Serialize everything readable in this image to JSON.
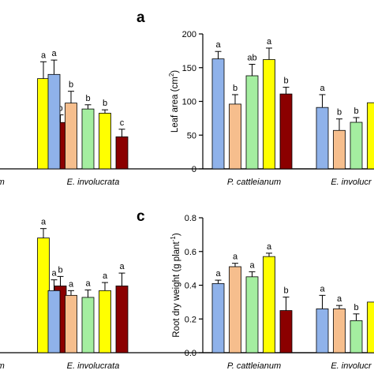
{
  "colors": [
    "#8fb2ea",
    "#f6be8d",
    "#a4eea0",
    "#ffff00",
    "#8b0000"
  ],
  "chart_data": [
    {
      "type": "bar",
      "panel_label": "",
      "ylabel": "",
      "categories": [
        "",
        "E. involucrata"
      ],
      "category_text": [
        "anum",
        "E. involucrata"
      ],
      "tick_labels": [],
      "values": [
        [
          null,
          null,
          null,
          1.07,
          0.55
        ],
        [
          1.12,
          0.78,
          0.71,
          0.66,
          0.38
        ]
      ],
      "errors": [
        [
          null,
          null,
          null,
          0.2,
          0.09
        ],
        [
          0.17,
          0.14,
          0.05,
          0.04,
          0.09
        ]
      ],
      "letters": [
        [
          "",
          "",
          "",
          "a",
          "b"
        ],
        [
          "a",
          "b",
          "b",
          "b",
          "c"
        ]
      ],
      "ylim": [
        0,
        1.6
      ]
    },
    {
      "type": "bar",
      "panel_label": "a",
      "ylabel": "Leaf area",
      "ylabel_unit": "(cm",
      "ylabel_sup": "2",
      "ylabel_close": ")",
      "categories": [
        "P. cattleianum",
        "E. involucrata"
      ],
      "category_text": [
        "P. cattleianum",
        "E. involucr"
      ],
      "tick_labels": [
        "0",
        "50",
        "100",
        "150",
        "200"
      ],
      "values": [
        [
          163,
          96,
          138,
          162,
          111
        ],
        [
          91,
          57,
          69,
          98,
          null
        ]
      ],
      "errors": [
        [
          11,
          14,
          17,
          17,
          10
        ],
        [
          19,
          17,
          7,
          null,
          null
        ]
      ],
      "letters": [
        [
          "a",
          "b",
          "ab",
          "a",
          "b"
        ],
        [
          "a",
          "b",
          "b",
          "",
          ""
        ]
      ],
      "ylim": [
        0,
        200
      ]
    },
    {
      "type": "bar",
      "panel_label": "",
      "ylabel": "",
      "categories": [
        "",
        "E. involucrata"
      ],
      "category_text": [
        "anum",
        "E. involucrata"
      ],
      "tick_labels": [],
      "values": [
        [
          null,
          null,
          null,
          1.7,
          0.99
        ],
        [
          0.92,
          0.85,
          0.82,
          0.92,
          0.99
        ]
      ],
      "errors": [
        [
          null,
          null,
          null,
          0.14,
          0.14
        ],
        [
          0.16,
          0.07,
          0.11,
          0.12,
          0.19
        ]
      ],
      "letters": [
        [
          "",
          "",
          "",
          "a",
          "b"
        ],
        [
          "a",
          "a",
          "a",
          "a",
          "a"
        ]
      ],
      "ylim": [
        0,
        2.0
      ]
    },
    {
      "type": "bar",
      "panel_label": "c",
      "ylabel": "Root dry weight",
      "ylabel_unit": "(g plant",
      "ylabel_sup": "-1",
      "ylabel_close": ")",
      "categories": [
        "P. cattleianum",
        "E. involucrata"
      ],
      "category_text": [
        "P. cattleianum",
        "E. involucr"
      ],
      "tick_labels": [
        "0.0",
        "0.2",
        "0.4",
        "0.6",
        "0.8"
      ],
      "values": [
        [
          0.41,
          0.51,
          0.45,
          0.57,
          0.25
        ],
        [
          0.26,
          0.26,
          0.19,
          0.3,
          null
        ]
      ],
      "errors": [
        [
          0.02,
          0.02,
          0.03,
          0.02,
          0.08
        ],
        [
          0.08,
          0.02,
          0.04,
          null,
          null
        ]
      ],
      "letters": [
        [
          "a",
          "a",
          "a",
          "a",
          "b"
        ],
        [
          "a",
          "a",
          "b",
          "",
          ""
        ]
      ],
      "ylim": [
        0,
        0.8
      ]
    }
  ]
}
